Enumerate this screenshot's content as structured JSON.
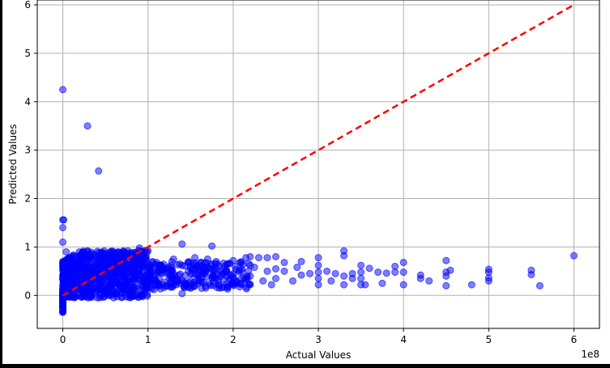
{
  "chart_data": {
    "type": "scatter",
    "xlabel": "Actual Values",
    "ylabel": "Predicted Values",
    "x_offset_label": "1e8",
    "xlim": [
      -0.3,
      6.3
    ],
    "ylim": [
      -0.68,
      6.1
    ],
    "x_ticks": [
      0,
      1,
      2,
      3,
      4,
      5,
      6
    ],
    "y_ticks": [
      0,
      1,
      2,
      3,
      4,
      5,
      6
    ],
    "x_tick_labels": [
      "0",
      "1",
      "2",
      "3",
      "4",
      "5",
      "6"
    ],
    "y_tick_labels": [
      "0",
      "1",
      "2",
      "3",
      "4",
      "5",
      "6"
    ],
    "grid": true,
    "point_color": "#0000ff",
    "reference_line": {
      "x": [
        0,
        6
      ],
      "y": [
        0,
        6
      ],
      "color": "#ff0000",
      "style": "dashed"
    },
    "series": [
      {
        "values": [
          [
            0.0,
            4.25
          ],
          [
            0.29,
            3.5
          ],
          [
            0.42,
            2.57
          ],
          [
            0.0,
            1.56
          ],
          [
            0.01,
            1.56
          ],
          [
            0.0,
            1.4
          ],
          [
            0.0,
            1.1
          ],
          [
            0.04,
            0.9
          ],
          [
            0.9,
            0.98
          ],
          [
            1.4,
            1.06
          ],
          [
            1.75,
            1.02
          ],
          [
            1.4,
            0.04
          ],
          [
            6.0,
            0.82
          ],
          [
            5.6,
            0.2
          ],
          [
            5.5,
            0.52
          ],
          [
            5.5,
            0.43
          ],
          [
            5.0,
            0.54
          ],
          [
            5.0,
            0.48
          ],
          [
            5.0,
            0.36
          ],
          [
            5.0,
            0.3
          ],
          [
            4.8,
            0.22
          ],
          [
            4.55,
            0.52
          ],
          [
            4.5,
            0.72
          ],
          [
            4.5,
            0.48
          ],
          [
            4.5,
            0.4
          ],
          [
            4.5,
            0.2
          ],
          [
            4.3,
            0.3
          ],
          [
            4.2,
            0.42
          ],
          [
            4.2,
            0.35
          ],
          [
            4.0,
            0.68
          ],
          [
            4.0,
            0.48
          ],
          [
            4.0,
            0.22
          ],
          [
            3.9,
            0.6
          ],
          [
            3.9,
            0.48
          ],
          [
            3.8,
            0.46
          ],
          [
            3.75,
            0.25
          ],
          [
            3.7,
            0.48
          ],
          [
            3.6,
            0.56
          ],
          [
            3.55,
            0.22
          ],
          [
            3.5,
            0.62
          ],
          [
            3.5,
            0.48
          ],
          [
            3.5,
            0.35
          ],
          [
            3.5,
            0.22
          ],
          [
            3.4,
            0.45
          ],
          [
            3.4,
            0.35
          ],
          [
            3.3,
            0.92
          ],
          [
            3.3,
            0.82
          ],
          [
            3.3,
            0.4
          ],
          [
            3.3,
            0.22
          ],
          [
            3.2,
            0.45
          ],
          [
            3.15,
            0.3
          ],
          [
            3.1,
            0.5
          ],
          [
            3.0,
            0.78
          ],
          [
            3.0,
            0.62
          ],
          [
            3.0,
            0.48
          ],
          [
            3.0,
            0.35
          ],
          [
            3.0,
            0.22
          ],
          [
            2.9,
            0.45
          ],
          [
            2.8,
            0.7
          ],
          [
            2.8,
            0.42
          ],
          [
            2.75,
            0.58
          ],
          [
            2.7,
            0.3
          ],
          [
            2.6,
            0.68
          ],
          [
            2.6,
            0.5
          ],
          [
            2.5,
            0.8
          ],
          [
            2.5,
            0.55
          ],
          [
            2.5,
            0.35
          ],
          [
            2.45,
            0.22
          ],
          [
            2.4,
            0.78
          ],
          [
            2.4,
            0.5
          ],
          [
            2.35,
            0.3
          ],
          [
            2.3,
            0.78
          ],
          [
            2.25,
            0.58
          ],
          [
            2.2,
            0.8
          ],
          [
            2.2,
            0.62
          ],
          [
            2.2,
            0.4
          ],
          [
            2.2,
            0.22
          ],
          [
            2.15,
            0.78
          ],
          [
            2.1,
            0.5
          ],
          [
            2.0,
            0.72
          ],
          [
            2.0,
            0.45
          ],
          [
            2.0,
            0.25
          ],
          [
            1.9,
            0.6
          ],
          [
            1.8,
            0.7
          ],
          [
            1.8,
            0.35
          ],
          [
            1.7,
            0.75
          ],
          [
            1.65,
            0.5
          ],
          [
            1.6,
            0.3
          ],
          [
            1.55,
            0.78
          ],
          [
            1.5,
            0.45
          ],
          [
            1.45,
            0.22
          ],
          [
            1.4,
            0.62
          ],
          [
            1.3,
            0.75
          ],
          [
            1.25,
            0.35
          ],
          [
            1.2,
            0.55
          ],
          [
            1.1,
            0.28
          ],
          [
            1.05,
            0.68
          ]
        ]
      }
    ]
  }
}
